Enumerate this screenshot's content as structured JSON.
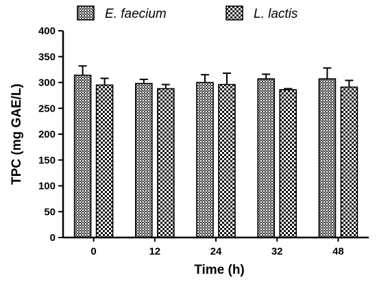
{
  "chart_data": {
    "type": "bar",
    "categories": [
      "0",
      "12",
      "24",
      "32",
      "48"
    ],
    "series": [
      {
        "name": "E. faecium",
        "values": [
          314,
          298,
          300,
          307,
          307
        ],
        "errors": [
          18,
          8,
          15,
          9,
          21
        ],
        "pattern": "fine-crosshatch"
      },
      {
        "name": "L. lactis",
        "values": [
          295,
          288,
          296,
          286,
          291
        ],
        "errors": [
          13,
          8,
          22,
          2,
          13
        ],
        "pattern": "checkerboard"
      }
    ],
    "xlabel": "Time (h)",
    "ylabel": "TPC (mg GAE/L)",
    "ylim": [
      0,
      400
    ],
    "yticks": [
      0,
      50,
      100,
      150,
      200,
      250,
      300,
      350,
      400
    ],
    "grid": false,
    "legend_position": "top",
    "colors": {
      "bar_fill": "#555555",
      "bar_light": "#ffffff",
      "axis": "#000000"
    }
  }
}
